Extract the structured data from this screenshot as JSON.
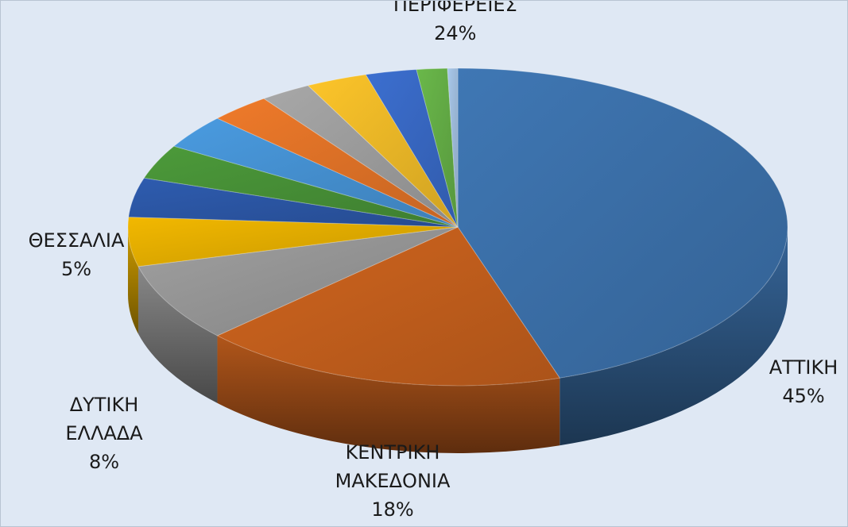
{
  "chart_data": {
    "type": "pie3d",
    "categories": [
      "ΑΤΤΙΚΗ",
      "ΚΕΝΤΡΙΚΗ ΜΑΚΕΔΟΝΙΑ",
      "ΔΥΤΙΚΗ ΕΛΛΑΔΑ",
      "ΘΕΣΣΑΛΙΑ",
      null,
      null,
      null,
      null,
      null,
      null,
      null,
      null,
      null
    ],
    "values": [
      45,
      18,
      8,
      5,
      4,
      3.5,
      3.5,
      3,
      2.5,
      3,
      2.5,
      1.5,
      0.5
    ],
    "value_labels": [
      "45%",
      "18%",
      "8%",
      "5%",
      null,
      null,
      null,
      null,
      null,
      null,
      null,
      null,
      null
    ],
    "colors": [
      "#3f77b4",
      "#d0651e",
      "#a0a0a0",
      "#f2b800",
      "#2e5caf",
      "#4c9a3a",
      "#4a9be0",
      "#ef7a2a",
      "#a8a8a8",
      "#fdc52a",
      "#3c6fd0",
      "#6ab84a",
      "#a9c8ea"
    ],
    "annotations": [
      {
        "text": "ΛΟΙΠΕΣ ΠΕΡΙΦΕΡΕΙΕΣ",
        "value": 24,
        "value_label": "24%"
      }
    ]
  }
}
